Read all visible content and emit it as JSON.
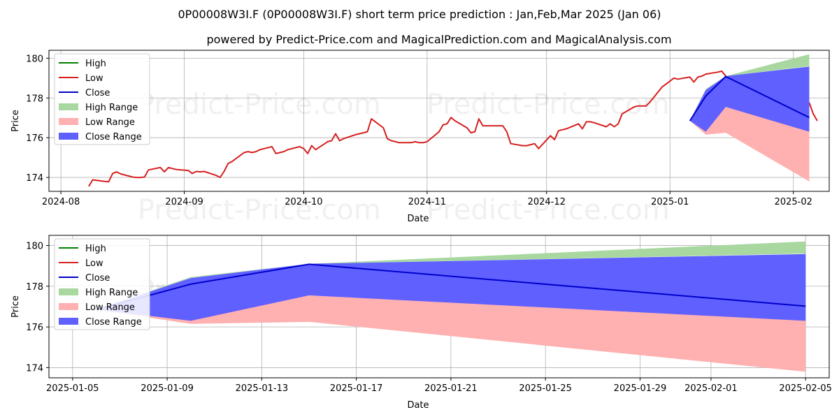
{
  "header": {
    "title": "0P00008W3I.F (0P00008W3I.F) short term price prediction : Jan,Feb,Mar 2025 (Jan 06)",
    "subtitle": "powered by Predict-Price.com and MagicalPrediction.com and MagicalAnalysis.com"
  },
  "watermark": "Predict-Price.com",
  "colors": {
    "high": "#008000",
    "low": "#d62020",
    "close": "#0000cc",
    "high_range": "#a8d8a0",
    "low_range": "#ffb0b0",
    "close_range": "#6060ff"
  },
  "legend": [
    "High",
    "Low",
    "Close",
    "High Range",
    "Low Range",
    "Close Range"
  ],
  "chart_data": [
    {
      "type": "line",
      "name": "history",
      "xlabel": "Date",
      "ylabel": "Price",
      "x_domain": [
        "2024-07-29",
        "2025-02-10"
      ],
      "ylim": [
        173.3,
        180.4
      ],
      "yticks": [
        174,
        176,
        178,
        180
      ],
      "xticks": [
        "2024-08",
        "2024-09",
        "2024-10",
        "2024-11",
        "2024-12",
        "2025-01",
        "2025-02"
      ],
      "grid": true,
      "legend_placement": "top-left",
      "series": [
        {
          "name": "Low",
          "points": [
            [
              "2024-08-08",
              173.55
            ],
            [
              "2024-08-09",
              173.88
            ],
            [
              "2024-08-12",
              173.8
            ],
            [
              "2024-08-13",
              173.78
            ],
            [
              "2024-08-14",
              174.2
            ],
            [
              "2024-08-15",
              174.28
            ],
            [
              "2024-08-16",
              174.18
            ],
            [
              "2024-08-19",
              174.02
            ],
            [
              "2024-08-20",
              174.0
            ],
            [
              "2024-08-21",
              174.0
            ],
            [
              "2024-08-22",
              174.02
            ],
            [
              "2024-08-23",
              174.38
            ],
            [
              "2024-08-26",
              174.5
            ],
            [
              "2024-08-27",
              174.28
            ],
            [
              "2024-08-28",
              174.5
            ],
            [
              "2024-08-29",
              174.45
            ],
            [
              "2024-08-30",
              174.4
            ],
            [
              "2024-09-02",
              174.35
            ],
            [
              "2024-09-03",
              174.2
            ],
            [
              "2024-09-04",
              174.3
            ],
            [
              "2024-09-05",
              174.28
            ],
            [
              "2024-09-06",
              174.3
            ],
            [
              "2024-09-09",
              174.1
            ],
            [
              "2024-09-10",
              174.0
            ],
            [
              "2024-09-11",
              174.3
            ],
            [
              "2024-09-12",
              174.7
            ],
            [
              "2024-09-13",
              174.8
            ],
            [
              "2024-09-16",
              175.25
            ],
            [
              "2024-09-17",
              175.3
            ],
            [
              "2024-09-18",
              175.25
            ],
            [
              "2024-09-19",
              175.3
            ],
            [
              "2024-09-20",
              175.4
            ],
            [
              "2024-09-23",
              175.55
            ],
            [
              "2024-09-24",
              175.2
            ],
            [
              "2024-09-25",
              175.25
            ],
            [
              "2024-09-26",
              175.3
            ],
            [
              "2024-09-27",
              175.4
            ],
            [
              "2024-09-30",
              175.55
            ],
            [
              "2024-10-01",
              175.45
            ],
            [
              "2024-10-02",
              175.2
            ],
            [
              "2024-10-03",
              175.6
            ],
            [
              "2024-10-04",
              175.4
            ],
            [
              "2024-10-07",
              175.8
            ],
            [
              "2024-10-08",
              175.85
            ],
            [
              "2024-10-09",
              176.2
            ],
            [
              "2024-10-10",
              175.85
            ],
            [
              "2024-10-11",
              175.95
            ],
            [
              "2024-10-14",
              176.15
            ],
            [
              "2024-10-15",
              176.2
            ],
            [
              "2024-10-16",
              176.25
            ],
            [
              "2024-10-17",
              176.3
            ],
            [
              "2024-10-18",
              176.95
            ],
            [
              "2024-10-21",
              176.5
            ],
            [
              "2024-10-22",
              175.95
            ],
            [
              "2024-10-23",
              175.85
            ],
            [
              "2024-10-24",
              175.8
            ],
            [
              "2024-10-25",
              175.75
            ],
            [
              "2024-10-28",
              175.75
            ],
            [
              "2024-10-29",
              175.8
            ],
            [
              "2024-10-30",
              175.75
            ],
            [
              "2024-10-31",
              175.75
            ],
            [
              "2024-11-01",
              175.8
            ],
            [
              "2024-11-04",
              176.3
            ],
            [
              "2024-11-05",
              176.65
            ],
            [
              "2024-11-06",
              176.7
            ],
            [
              "2024-11-07",
              177.02
            ],
            [
              "2024-11-08",
              176.85
            ],
            [
              "2024-11-11",
              176.5
            ],
            [
              "2024-11-12",
              176.25
            ],
            [
              "2024-11-13",
              176.3
            ],
            [
              "2024-11-14",
              176.95
            ],
            [
              "2024-11-15",
              176.6
            ],
            [
              "2024-11-18",
              176.6
            ],
            [
              "2024-11-19",
              176.6
            ],
            [
              "2024-11-20",
              176.6
            ],
            [
              "2024-11-21",
              176.3
            ],
            [
              "2024-11-22",
              175.7
            ],
            [
              "2024-11-25",
              175.6
            ],
            [
              "2024-11-26",
              175.6
            ],
            [
              "2024-11-27",
              175.65
            ],
            [
              "2024-11-28",
              175.7
            ],
            [
              "2024-11-29",
              175.45
            ],
            [
              "2024-12-02",
              176.1
            ],
            [
              "2024-12-03",
              175.9
            ],
            [
              "2024-12-04",
              176.35
            ],
            [
              "2024-12-05",
              176.4
            ],
            [
              "2024-12-06",
              176.45
            ],
            [
              "2024-12-09",
              176.7
            ],
            [
              "2024-12-10",
              176.45
            ],
            [
              "2024-12-11",
              176.8
            ],
            [
              "2024-12-12",
              176.8
            ],
            [
              "2024-12-13",
              176.75
            ],
            [
              "2024-12-16",
              176.55
            ],
            [
              "2024-12-17",
              176.7
            ],
            [
              "2024-12-18",
              176.55
            ],
            [
              "2024-12-19",
              176.7
            ],
            [
              "2024-12-20",
              177.2
            ],
            [
              "2024-12-23",
              177.55
            ],
            [
              "2024-12-24",
              177.6
            ],
            [
              "2024-12-26",
              177.6
            ],
            [
              "2024-12-27",
              177.8
            ],
            [
              "2024-12-30",
              178.55
            ],
            [
              "2024-12-31",
              178.7
            ],
            [
              "2025-01-02",
              179.0
            ],
            [
              "2025-01-03",
              178.95
            ],
            [
              "2025-01-06",
              179.05
            ],
            [
              "2025-01-07",
              178.8
            ],
            [
              "2025-01-08",
              179.05
            ],
            [
              "2025-01-09",
              179.1
            ],
            [
              "2025-01-10",
              179.2
            ],
            [
              "2025-01-13",
              179.3
            ],
            [
              "2025-01-14",
              179.35
            ],
            [
              "2025-01-15",
              179.1
            ],
            [
              "2025-01-16",
              178.6
            ],
            [
              "2025-01-17",
              178.6
            ],
            [
              "2025-01-20",
              178.6
            ],
            [
              "2025-01-21",
              178.65
            ],
            [
              "2025-01-22",
              178.5
            ],
            [
              "2025-01-23",
              177.95
            ],
            [
              "2025-01-24",
              178.15
            ],
            [
              "2025-01-27",
              177.95
            ],
            [
              "2025-01-28",
              177.85
            ],
            [
              "2025-01-29",
              177.75
            ],
            [
              "2025-01-30",
              177.65
            ],
            [
              "2025-01-31",
              177.5
            ],
            [
              "2025-02-03",
              177.85
            ],
            [
              "2025-02-04",
              177.8
            ],
            [
              "2025-02-05",
              177.75
            ],
            [
              "2025-02-06",
              177.2
            ],
            [
              "2025-02-07",
              176.85
            ]
          ]
        }
      ]
    },
    {
      "type": "area",
      "name": "forecast",
      "xlabel": "Date",
      "ylabel": "Price",
      "x_domain": [
        "2025-01-04",
        "2025-02-06"
      ],
      "ylim": [
        173.5,
        180.5
      ],
      "yticks": [
        174,
        176,
        178,
        180
      ],
      "xticks": [
        "2025-01-05",
        "2025-01-09",
        "2025-01-13",
        "2025-01-17",
        "2025-01-21",
        "2025-01-25",
        "2025-01-29",
        "2025-02-01",
        "2025-02-05"
      ],
      "grid": true,
      "legend_placement": "top-left",
      "x": [
        "2025-01-06",
        "2025-01-10",
        "2025-01-15",
        "2025-02-05"
      ],
      "series": [
        {
          "name": "High",
          "values": [
            null,
            null,
            null,
            null
          ]
        },
        {
          "name": "Low",
          "values": [
            null,
            null,
            null,
            null
          ]
        },
        {
          "name": "Close",
          "values": [
            176.85,
            178.1,
            179.08,
            177.02
          ]
        },
        {
          "name": "High Range",
          "lower": [
            176.85,
            178.4,
            179.1,
            179.6
          ],
          "upper": [
            176.85,
            178.45,
            179.1,
            180.2
          ]
        },
        {
          "name": "Low Range",
          "lower": [
            176.85,
            176.15,
            176.25,
            173.8
          ],
          "upper": [
            176.85,
            176.35,
            177.55,
            176.35
          ]
        },
        {
          "name": "Close Range",
          "lower": [
            176.85,
            176.3,
            177.55,
            176.3
          ],
          "upper": [
            176.85,
            178.4,
            179.1,
            179.58
          ]
        }
      ]
    }
  ]
}
